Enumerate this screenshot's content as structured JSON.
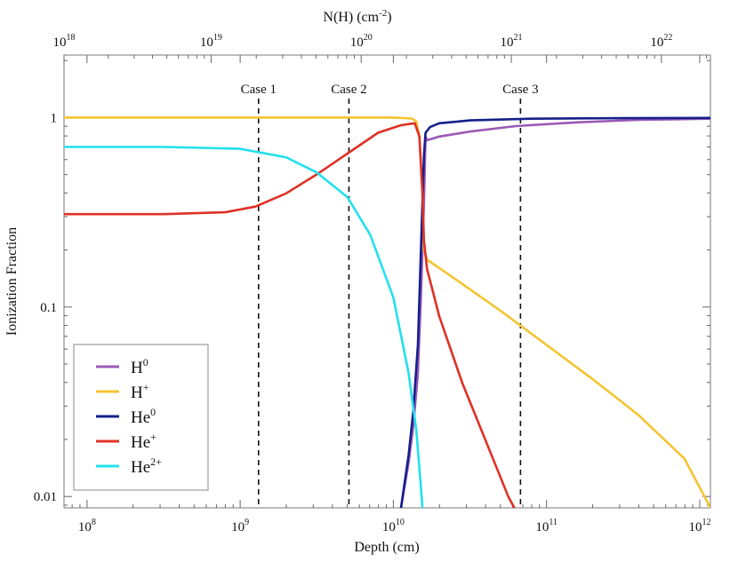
{
  "chart_data": {
    "type": "line",
    "xscale": "log",
    "yscale": "log",
    "xlim_exp": [
      7.85,
      12.07
    ],
    "ylim_exp": [
      -2.06,
      0.33
    ],
    "xlabel": "Depth (cm)",
    "ylabel": "Ionization Fraction",
    "top_axis_label": {
      "base": "N(H) (cm",
      "sup": "-2",
      "close": ")"
    },
    "x_ticks": [
      {
        "base": "10",
        "exp": "8",
        "value_exp": 8
      },
      {
        "base": "10",
        "exp": "9",
        "value_exp": 9
      },
      {
        "base": "10",
        "exp": "10",
        "value_exp": 10
      },
      {
        "base": "10",
        "exp": "11",
        "value_exp": 11
      },
      {
        "base": "10",
        "exp": "12",
        "value_exp": 12
      }
    ],
    "y_ticks": [
      {
        "label": "0.01",
        "value_exp": -2
      },
      {
        "label": "0.1",
        "value_exp": -1
      },
      {
        "label": "1",
        "value_exp": 0
      }
    ],
    "top_ticks": [
      {
        "base": "10",
        "exp": "18",
        "depth_exp": 7.85
      },
      {
        "base": "10",
        "exp": "19",
        "depth_exp": 8.81
      },
      {
        "base": "10",
        "exp": "20",
        "depth_exp": 9.79
      },
      {
        "base": "10",
        "exp": "21",
        "depth_exp": 10.77
      },
      {
        "base": "10",
        "exp": "22",
        "depth_exp": 11.75
      }
    ],
    "cases": [
      {
        "label": "Case 1",
        "depth_exp": 9.12
      },
      {
        "label": "Case 2",
        "depth_exp": 9.71
      },
      {
        "label": "Case 3",
        "depth_exp": 10.83
      }
    ],
    "series": [
      {
        "name": "H0",
        "label_base": "H",
        "label_sup": "0",
        "color": "#9b59b6",
        "points": [
          [
            10.05,
            -2.06
          ],
          [
            10.1,
            -1.82
          ],
          [
            10.13,
            -1.63
          ],
          [
            10.16,
            -1.35
          ],
          [
            10.18,
            -0.95
          ],
          [
            10.2,
            -0.45
          ],
          [
            10.21,
            -0.1
          ],
          [
            10.22,
            -0.12
          ],
          [
            10.3,
            -0.1
          ],
          [
            10.5,
            -0.074
          ],
          [
            10.8,
            -0.045
          ],
          [
            11.2,
            -0.025
          ],
          [
            11.6,
            -0.012
          ],
          [
            12.07,
            -0.006
          ]
        ]
      },
      {
        "name": "H+",
        "label_base": "H",
        "label_sup": "+",
        "color": "#f4c430",
        "points": [
          [
            7.85,
            0
          ],
          [
            9.0,
            0
          ],
          [
            9.8,
            0
          ],
          [
            10.0,
            0
          ],
          [
            10.12,
            -0.005
          ],
          [
            10.15,
            -0.02
          ],
          [
            10.17,
            -0.1
          ],
          [
            10.19,
            -0.4
          ],
          [
            10.2,
            -0.7
          ],
          [
            10.22,
            -0.75
          ],
          [
            10.4,
            -0.85
          ],
          [
            10.7,
            -1.02
          ],
          [
            11.0,
            -1.2
          ],
          [
            11.3,
            -1.38
          ],
          [
            11.6,
            -1.57
          ],
          [
            11.9,
            -1.8
          ],
          [
            12.07,
            -2.06
          ]
        ]
      },
      {
        "name": "He0",
        "label_base": "He",
        "label_sup": "0",
        "color": "#15208c",
        "points": [
          [
            10.05,
            -2.06
          ],
          [
            10.1,
            -1.78
          ],
          [
            10.13,
            -1.55
          ],
          [
            10.16,
            -1.2
          ],
          [
            10.18,
            -0.7
          ],
          [
            10.2,
            -0.2
          ],
          [
            10.21,
            -0.08
          ],
          [
            10.24,
            -0.05
          ],
          [
            10.3,
            -0.03
          ],
          [
            10.5,
            -0.015
          ],
          [
            10.9,
            -0.006
          ],
          [
            11.5,
            -0.003
          ],
          [
            12.07,
            -0.002
          ]
        ]
      },
      {
        "name": "He+",
        "label_base": "He",
        "label_sup": "+",
        "color": "#e03025",
        "points": [
          [
            7.85,
            -0.51
          ],
          [
            8.5,
            -0.51
          ],
          [
            8.9,
            -0.5
          ],
          [
            9.1,
            -0.47
          ],
          [
            9.3,
            -0.4
          ],
          [
            9.5,
            -0.3
          ],
          [
            9.7,
            -0.19
          ],
          [
            9.9,
            -0.08
          ],
          [
            10.05,
            -0.04
          ],
          [
            10.14,
            -0.03
          ],
          [
            10.17,
            -0.1
          ],
          [
            10.19,
            -0.4
          ],
          [
            10.2,
            -0.65
          ],
          [
            10.22,
            -0.8
          ],
          [
            10.3,
            -1.05
          ],
          [
            10.45,
            -1.4
          ],
          [
            10.6,
            -1.7
          ],
          [
            10.75,
            -2.0
          ],
          [
            10.79,
            -2.06
          ]
        ]
      },
      {
        "name": "He2+",
        "label_base": "He",
        "label_sup": "2+",
        "color": "#22e0ee",
        "points": [
          [
            7.85,
            -0.155
          ],
          [
            8.5,
            -0.155
          ],
          [
            9.0,
            -0.165
          ],
          [
            9.3,
            -0.21
          ],
          [
            9.5,
            -0.29
          ],
          [
            9.7,
            -0.42
          ],
          [
            9.85,
            -0.62
          ],
          [
            10.0,
            -0.95
          ],
          [
            10.1,
            -1.35
          ],
          [
            10.15,
            -1.65
          ],
          [
            10.18,
            -1.95
          ],
          [
            10.19,
            -2.06
          ]
        ]
      }
    ]
  }
}
